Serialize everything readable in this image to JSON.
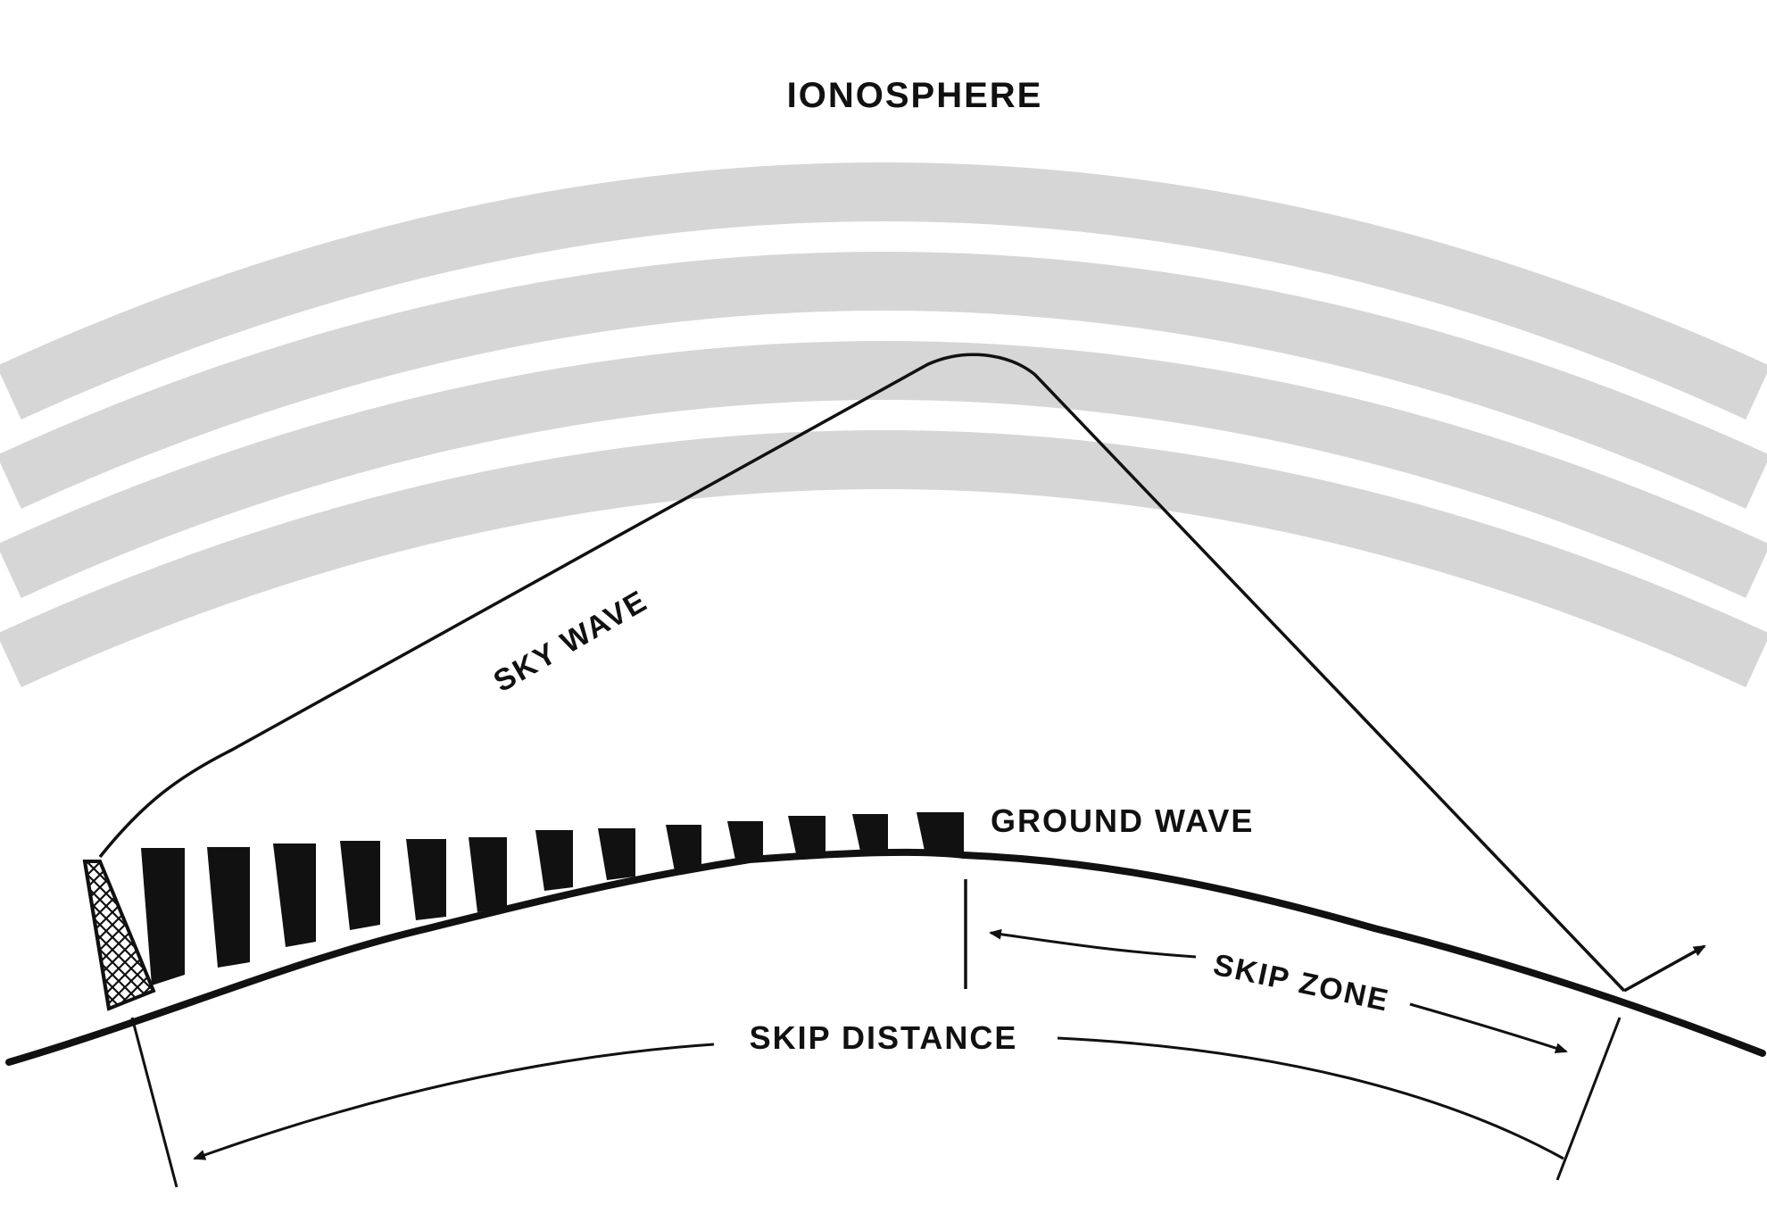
{
  "diagram": {
    "title": "IONOSPHERE",
    "labels": {
      "sky_wave": "SKY WAVE",
      "ground_wave": "GROUND  WAVE",
      "skip_zone": "SKIP ZONE",
      "skip_distance": "SKIP DISTANCE"
    },
    "colors": {
      "ionosphere_band": "#d6d6d6",
      "ink": "#111111",
      "background": "#ffffff"
    },
    "icons": {
      "transmitter": "transmitter-tower-icon",
      "receiver_arrow": "arrow-up-right-icon"
    }
  }
}
